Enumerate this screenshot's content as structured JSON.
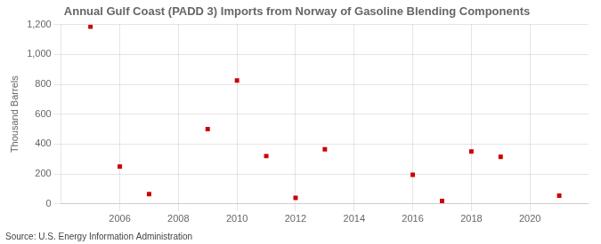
{
  "chart_data": {
    "type": "scatter",
    "title": "Annual Gulf Coast (PADD 3) Imports from Norway of Gasoline Blending Components",
    "ylabel": "Thousand Barrels",
    "annotation": "Source: U.S. Energy Information Administration",
    "x": [
      2005,
      2006,
      2007,
      2009,
      2010,
      2011,
      2012,
      2013,
      2016,
      2017,
      2018,
      2019,
      2021
    ],
    "values": [
      1185,
      250,
      65,
      500,
      825,
      320,
      40,
      365,
      195,
      20,
      350,
      315,
      55
    ],
    "color": "#cc0000",
    "marker": "square",
    "xlim": [
      2004.0,
      2022.0
    ],
    "xticks": [
      2006,
      2008,
      2010,
      2012,
      2014,
      2016,
      2018,
      2020
    ],
    "ylim": [
      0,
      1200
    ],
    "yticks": [
      0,
      200,
      400,
      600,
      {
        "value": 800,
        "label": "800"
      },
      {
        "value": 1000,
        "label": "1,000"
      },
      {
        "value": 1200,
        "label": "1,200"
      }
    ],
    "grid": true,
    "legend": false
  }
}
